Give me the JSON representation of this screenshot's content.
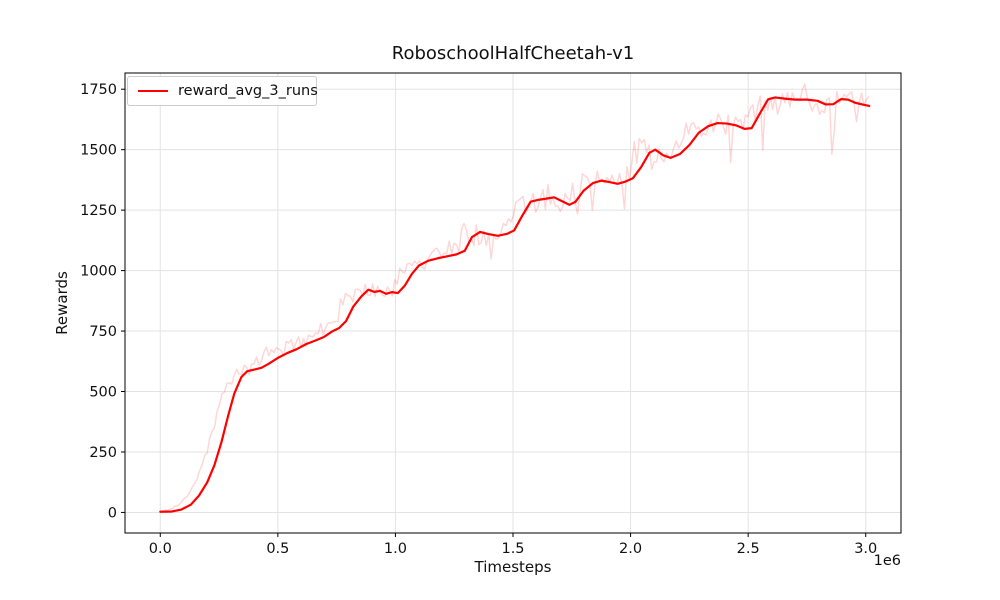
{
  "figure": {
    "title": "RoboschoolHalfCheetah-v1",
    "xlabel": "Timesteps",
    "ylabel": "Rewards",
    "offset_label": "1e6",
    "legend_label": "reward_avg_3_runs",
    "legend_color": "#ff0000"
  },
  "chart_data": {
    "type": "line",
    "title": "RoboschoolHalfCheetah-v1",
    "xlabel": "Timesteps",
    "ylabel": "Rewards",
    "x_scale_factor": "1e6",
    "grid": true,
    "legend_position": "upper left",
    "legend_entries": [
      "reward_avg_3_runs"
    ],
    "xlim": [
      -0.15,
      3.15
    ],
    "ylim": [
      -85,
      1817
    ],
    "x_ticks": [
      0,
      0.5,
      1,
      1.5,
      2,
      2.5,
      3
    ],
    "x_tick_labels": [
      "0.0",
      "0.5",
      "1.0",
      "1.5",
      "2.0",
      "2.5",
      "3.0"
    ],
    "y_ticks": [
      0,
      250,
      500,
      750,
      1000,
      1250,
      1500,
      1750
    ],
    "y_tick_labels": [
      "0",
      "250",
      "500",
      "750",
      "1000",
      "1250",
      "1500",
      "1750"
    ],
    "colors": {
      "grid": "#e3e3e3",
      "spine": "#000000",
      "text": "#111111",
      "background": "#ffffff"
    },
    "series": [
      {
        "name": "reward_avg_3_runs",
        "role": "smoothed_average",
        "color": "#ff0000",
        "line_width": 2.2,
        "opacity": 1.0,
        "x_unit": "1e6 timesteps",
        "points": [
          [
            0.0,
            3
          ],
          [
            0.05,
            4
          ],
          [
            0.09,
            12
          ],
          [
            0.13,
            32
          ],
          [
            0.165,
            70
          ],
          [
            0.2,
            125
          ],
          [
            0.23,
            195
          ],
          [
            0.26,
            290
          ],
          [
            0.29,
            405
          ],
          [
            0.315,
            492
          ],
          [
            0.345,
            560
          ],
          [
            0.37,
            584
          ],
          [
            0.4,
            591
          ],
          [
            0.43,
            598
          ],
          [
            0.46,
            614
          ],
          [
            0.5,
            639
          ],
          [
            0.54,
            659
          ],
          [
            0.58,
            675
          ],
          [
            0.62,
            696
          ],
          [
            0.66,
            711
          ],
          [
            0.695,
            725
          ],
          [
            0.73,
            748
          ],
          [
            0.76,
            762
          ],
          [
            0.79,
            791
          ],
          [
            0.82,
            850
          ],
          [
            0.855,
            893
          ],
          [
            0.885,
            921
          ],
          [
            0.91,
            912
          ],
          [
            0.935,
            916
          ],
          [
            0.96,
            904
          ],
          [
            0.985,
            911
          ],
          [
            1.01,
            907
          ],
          [
            1.04,
            938
          ],
          [
            1.07,
            986
          ],
          [
            1.1,
            1021
          ],
          [
            1.14,
            1041
          ],
          [
            1.18,
            1051
          ],
          [
            1.22,
            1059
          ],
          [
            1.26,
            1067
          ],
          [
            1.295,
            1082
          ],
          [
            1.325,
            1138
          ],
          [
            1.36,
            1160
          ],
          [
            1.395,
            1151
          ],
          [
            1.435,
            1144
          ],
          [
            1.475,
            1152
          ],
          [
            1.505,
            1166
          ],
          [
            1.54,
            1228
          ],
          [
            1.575,
            1285
          ],
          [
            1.61,
            1293
          ],
          [
            1.645,
            1298
          ],
          [
            1.675,
            1303
          ],
          [
            1.71,
            1286
          ],
          [
            1.74,
            1272
          ],
          [
            1.765,
            1284
          ],
          [
            1.8,
            1330
          ],
          [
            1.84,
            1362
          ],
          [
            1.875,
            1372
          ],
          [
            1.91,
            1366
          ],
          [
            1.945,
            1359
          ],
          [
            1.975,
            1367
          ],
          [
            2.01,
            1382
          ],
          [
            2.045,
            1428
          ],
          [
            2.08,
            1487
          ],
          [
            2.105,
            1500
          ],
          [
            2.14,
            1476
          ],
          [
            2.17,
            1466
          ],
          [
            2.21,
            1482
          ],
          [
            2.25,
            1519
          ],
          [
            2.29,
            1570
          ],
          [
            2.33,
            1597
          ],
          [
            2.37,
            1610
          ],
          [
            2.41,
            1608
          ],
          [
            2.45,
            1600
          ],
          [
            2.485,
            1586
          ],
          [
            2.515,
            1589
          ],
          [
            2.55,
            1650
          ],
          [
            2.585,
            1708
          ],
          [
            2.615,
            1716
          ],
          [
            2.655,
            1711
          ],
          [
            2.7,
            1707
          ],
          [
            2.75,
            1707
          ],
          [
            2.795,
            1702
          ],
          [
            2.83,
            1687
          ],
          [
            2.862,
            1688
          ],
          [
            2.895,
            1709
          ],
          [
            2.925,
            1707
          ],
          [
            2.955,
            1694
          ],
          [
            2.99,
            1686
          ],
          [
            3.015,
            1681
          ]
        ]
      },
      {
        "name": "raw_reward_trace",
        "role": "raw_noisy_trace",
        "color": "#ff0000",
        "line_width": 1.5,
        "opacity": 0.16,
        "derived_from": "reward_avg_3_runs",
        "noise": {
          "seed": 20,
          "step": 0.0105,
          "lead": 0.05,
          "base_amp": 10,
          "rel_amp": 0.044,
          "dip_prob": 0.07,
          "dip_scale": 0.13,
          "pop_prob": 0.06,
          "pop_scale": 0.03,
          "early_damp_until": 0.12,
          "early_damp": 0.3,
          "y_min": -15,
          "y_max": 1790
        }
      }
    ]
  }
}
